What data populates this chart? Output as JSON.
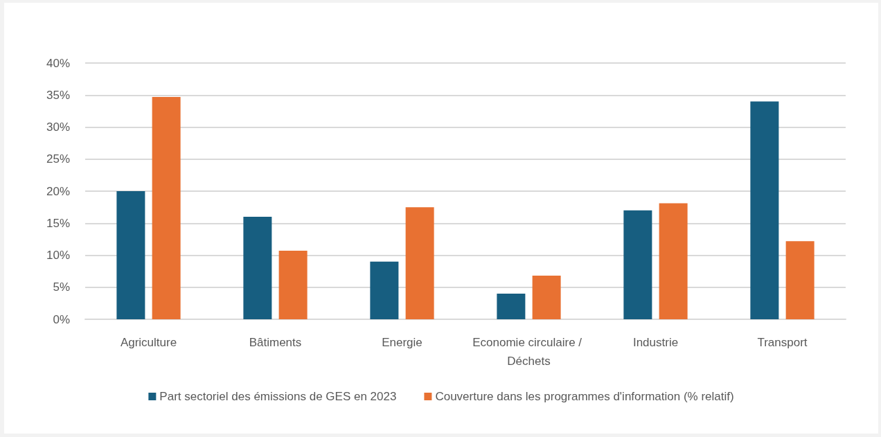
{
  "chart_data": {
    "type": "bar",
    "categories": [
      "Agriculture",
      "Bâtiments",
      "Energie",
      "Economie circulaire / Déchets",
      "Industrie",
      "Transport"
    ],
    "series": [
      {
        "name": "Part sectoriel des émissions de GES en 2023",
        "color": "#175e80",
        "values": [
          20,
          16,
          9,
          4,
          17,
          34
        ]
      },
      {
        "name": "Couverture dans les programmes d'information (% relatif)",
        "color": "#e87132",
        "values": [
          34.7,
          10.7,
          17.5,
          6.8,
          18.1,
          12.2
        ]
      }
    ],
    "ylim": [
      0,
      40
    ],
    "yticks": [
      {
        "value": 0,
        "label": "0%"
      },
      {
        "value": 5,
        "label": "5%"
      },
      {
        "value": 10,
        "label": "10%"
      },
      {
        "value": 15,
        "label": "15%"
      },
      {
        "value": 20,
        "label": "20%"
      },
      {
        "value": 25,
        "label": "25%"
      },
      {
        "value": 30,
        "label": "30%"
      },
      {
        "value": 35,
        "label": "35%"
      },
      {
        "value": 40,
        "label": "40%"
      }
    ],
    "grid": "y",
    "legend": "bottom"
  }
}
